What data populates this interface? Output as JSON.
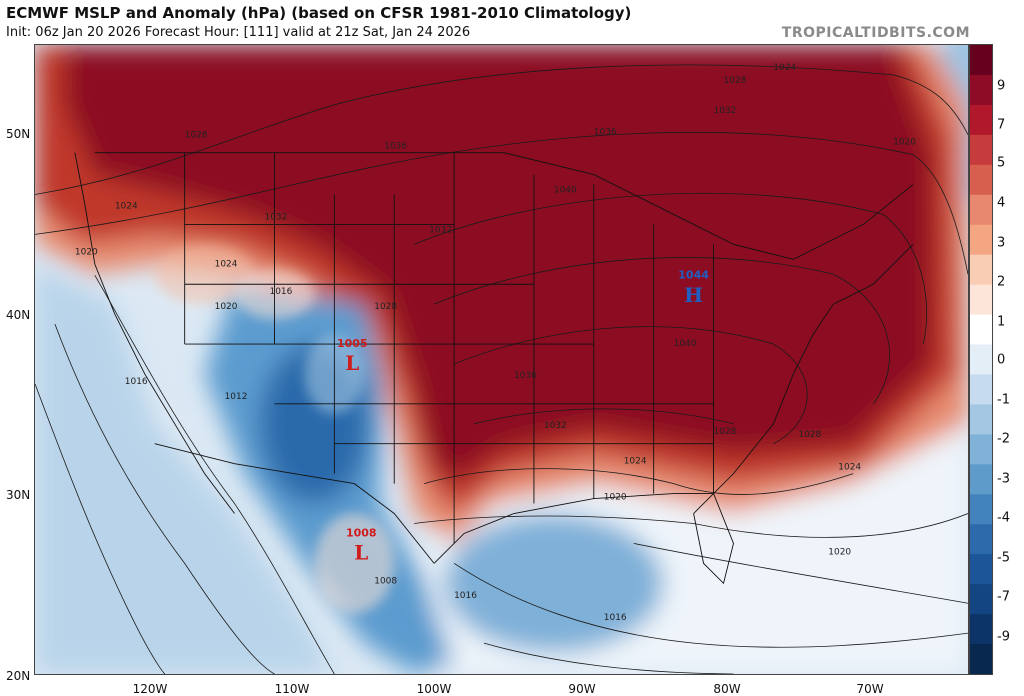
{
  "header": {
    "title": "ECMWF MSLP and Anomaly (hPa) (based on CFSR 1981-2010 Climatology)",
    "subtitle": "Init: 06z Jan 20 2026   Forecast Hour: [111]   valid at 21z Sat, Jan 24 2026",
    "brand": "TROPICALTIDBITS.COM"
  },
  "map": {
    "lat_labels": [
      "50N",
      "40N",
      "30N",
      "20N"
    ],
    "lon_labels": [
      "120W",
      "110W",
      "100W",
      "90W",
      "80W",
      "70W"
    ],
    "pressure_systems": [
      {
        "type": "H",
        "value": "1044",
        "color": "#1e5fc4"
      },
      {
        "type": "L",
        "value": "1005",
        "color": "#d01b1b"
      },
      {
        "type": "L",
        "value": "1008",
        "color": "#d01b1b"
      }
    ],
    "isobar_labels": [
      "1020",
      "1024",
      "1028",
      "1032",
      "1036",
      "1040",
      "1036",
      "1032",
      "1028",
      "1024",
      "1020",
      "1016",
      "1012",
      "1008",
      "1016",
      "1016",
      "1020",
      "1024",
      "1028",
      "1032",
      "1036",
      "1040",
      "1028",
      "1024",
      "1020",
      "1016",
      "1020",
      "1024",
      "1028",
      "1032"
    ]
  },
  "colorbar": {
    "labels": [
      "9",
      "7",
      "5",
      "4",
      "3",
      "2",
      "1",
      "0",
      "-1",
      "-2",
      "-3",
      "-4",
      "-5",
      "-7",
      "-9"
    ],
    "colors": [
      "#67001f",
      "#8e0c25",
      "#b2182b",
      "#c63b3b",
      "#d6604d",
      "#e8896f",
      "#f4a582",
      "#f9cdb4",
      "#fde6d9",
      "#ffffff",
      "#e3eef6",
      "#c6dbef",
      "#a4c8e3",
      "#80b2d8",
      "#5e9bcb",
      "#4383bd",
      "#2c6aab",
      "#1d5599",
      "#134583",
      "#0d3468",
      "#08284f"
    ]
  },
  "colors": {
    "deep_red": "#8c1020",
    "red": "#c0392b",
    "salmon": "#f0a081",
    "pale": "#fbe3d6",
    "white": "#ffffff",
    "pale_blue": "#d8e8f4",
    "light_blue": "#a9cbe5",
    "blue": "#5c9bcf",
    "dark_blue": "#2c6aab",
    "contour": "#1a1a1a"
  }
}
